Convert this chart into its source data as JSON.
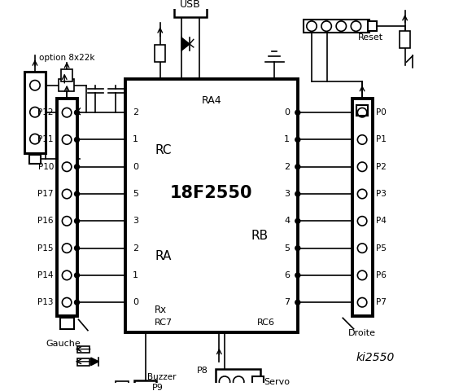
{
  "bg_color": "#ffffff",
  "fg_color": "#000000",
  "title": "ki2550",
  "ic_label": "18F2550",
  "ic_label2": "RA4",
  "left_connector_pins": [
    "P12",
    "P11",
    "P10",
    "P17",
    "P16",
    "P15",
    "P14",
    "P13"
  ],
  "right_connector_pins": [
    "P0",
    "P1",
    "P2",
    "P3",
    "P4",
    "P5",
    "P6",
    "P7"
  ],
  "rc_pins": [
    "2",
    "1",
    "0"
  ],
  "ra_pins": [
    "5",
    "3",
    "2",
    "1",
    "0"
  ],
  "rb_pins": [
    "0",
    "1",
    "2",
    "3",
    "4",
    "5",
    "6",
    "7"
  ],
  "option_text": "option 8x22k",
  "gauche_text": "Gauche",
  "droite_text": "Droite",
  "servo_text": "Servo",
  "buzzer_text": "Buzzer",
  "usb_text": "USB",
  "reset_text": "Reset",
  "p8_text": "P8",
  "p9_text": "P9",
  "rc_text": "RC",
  "ra_text": "RA",
  "rb_text": "RB",
  "rx_text": "Rx",
  "rc7_text": "RC7",
  "rc6_text": "RC6"
}
